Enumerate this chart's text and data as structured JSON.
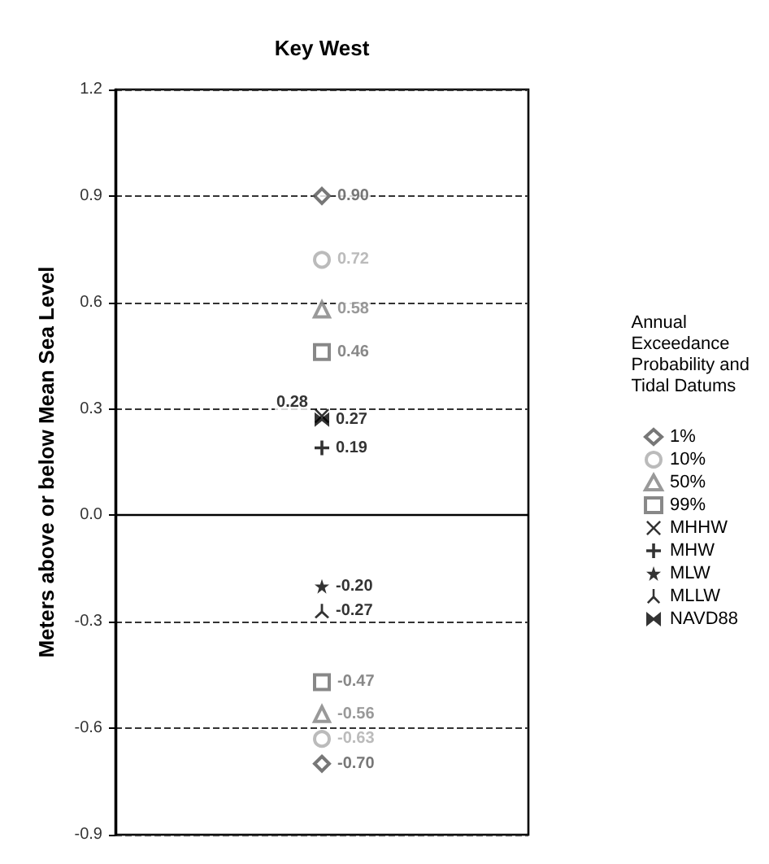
{
  "chart_data": {
    "type": "scatter",
    "title": "Key West",
    "ylabel": "Meters above or below Mean Sea Level",
    "legend_title": "Annual Exceedance Probability and Tidal Datums",
    "legend": "right",
    "grid": "y",
    "categories": [
      null
    ],
    "ylim": [
      -0.9,
      1.2
    ],
    "yticks": [
      -0.9,
      -0.6,
      -0.3,
      {
        "value": 0,
        "label": "0.0"
      },
      0.3,
      0.6,
      0.9,
      1.2
    ],
    "ref_lines": [
      {
        "axis": "y",
        "value": 0,
        "color": "#000000",
        "line_style": "solid"
      }
    ],
    "series": [
      {
        "name": "1%",
        "color": "#555555",
        "marker": "diamond",
        "x": [
          null,
          null
        ],
        "values": [
          0.9,
          -0.7
        ],
        "value_labels": [
          "0.90",
          "-0.70"
        ]
      },
      {
        "name": "10%",
        "color": "#aaaaaa",
        "marker": "circle",
        "x": [
          null,
          null
        ],
        "values": [
          0.72,
          -0.63
        ],
        "value_labels": [
          "0.72",
          "-0.63"
        ]
      },
      {
        "name": "50%",
        "color": "#808080",
        "marker": "triangle",
        "x": [
          null,
          null
        ],
        "values": [
          0.58,
          -0.56
        ],
        "value_labels": [
          "0.58",
          "-0.56"
        ]
      },
      {
        "name": "99%",
        "color": "#6a6a6a",
        "marker": "square",
        "x": [
          null,
          null
        ],
        "values": [
          0.46,
          -0.47
        ],
        "value_labels": [
          "0.46",
          "-0.47"
        ]
      },
      {
        "name": "MHHW",
        "color": "#000000",
        "marker": "cross",
        "values": [
          0.28
        ],
        "value_labels": [
          "0.28"
        ]
      },
      {
        "name": "MHW",
        "color": "#000000",
        "marker": "plus",
        "values": [
          0.19
        ],
        "value_labels": [
          "0.19"
        ]
      },
      {
        "name": "MLW",
        "color": "#000000",
        "marker": "star",
        "values": [
          -0.2
        ],
        "value_labels": [
          "-0.20"
        ]
      },
      {
        "name": "MLLW",
        "color": "#000000",
        "values": [
          -0.27
        ],
        "value_labels": [
          "-0.27"
        ]
      },
      {
        "name": "NAVD88",
        "color": "#000000",
        "values": [
          0.27
        ],
        "value_labels": [
          "0.27"
        ]
      }
    ]
  }
}
